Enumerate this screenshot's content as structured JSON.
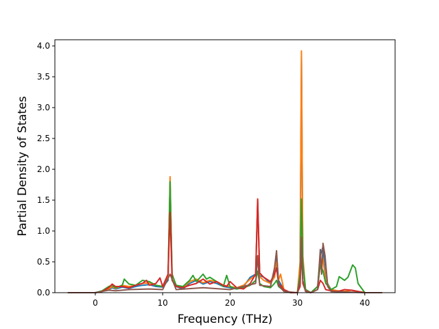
{
  "chart_data": {
    "type": "line",
    "title": "",
    "xlabel": "Frequency (THz)",
    "ylabel": "Partial Density of States",
    "xlim": [
      -6,
      44.5
    ],
    "ylim": [
      0,
      4.1
    ],
    "xticks": [
      0,
      10,
      20,
      30,
      40
    ],
    "yticks": [
      0.0,
      0.5,
      1.0,
      1.5,
      2.0,
      2.5,
      3.0,
      3.5,
      4.0
    ],
    "xtick_labels": [
      "0",
      "10",
      "20",
      "30",
      "40"
    ],
    "ytick_labels": [
      "0.0",
      "0.5",
      "1.0",
      "1.5",
      "2.0",
      "2.5",
      "3.0",
      "3.5",
      "4.0"
    ],
    "grid": false,
    "legend": "none",
    "series": [
      {
        "color": "#1f77b4",
        "x": [
          -4,
          0,
          1,
          2,
          2.5,
          3,
          4,
          5,
          6,
          7,
          8,
          9,
          10,
          10.8,
          11.1,
          11.4,
          12,
          13,
          14,
          15,
          16,
          17,
          18,
          19,
          20,
          21,
          22,
          23,
          23.8,
          24.1,
          24.4,
          25,
          26,
          26.6,
          26.9,
          27.2,
          28,
          29,
          30,
          30.4,
          30.6,
          30.8,
          31.2,
          32,
          33,
          33.4,
          33.8,
          34.2,
          35,
          36,
          37,
          38,
          39,
          40,
          42.5
        ],
        "y": [
          0,
          0,
          0.02,
          0.05,
          0.08,
          0.06,
          0.09,
          0.07,
          0.1,
          0.12,
          0.13,
          0.1,
          0.09,
          0.2,
          1.82,
          0.2,
          0.1,
          0.06,
          0.15,
          0.2,
          0.14,
          0.18,
          0.15,
          0.1,
          0.08,
          0.06,
          0.1,
          0.25,
          0.3,
          1.48,
          0.28,
          0.25,
          0.15,
          0.3,
          0.62,
          0.2,
          0.05,
          0,
          0,
          0.4,
          3.88,
          0.5,
          0.05,
          0,
          0.1,
          0.6,
          0.75,
          0.2,
          0.05,
          0.03,
          0.02,
          0.04,
          0.02,
          0,
          0
        ]
      },
      {
        "color": "#ff7f0e",
        "x": [
          -4,
          0,
          1,
          2,
          2.5,
          3,
          4,
          5,
          6,
          7,
          8,
          9,
          10,
          10.8,
          11.1,
          11.4,
          12,
          13,
          14,
          15,
          16,
          17,
          18,
          19,
          20,
          21,
          22,
          23,
          23.8,
          24.1,
          24.4,
          25,
          26,
          26.6,
          26.9,
          27.2,
          27.5,
          28,
          29,
          30,
          30.4,
          30.6,
          30.8,
          31.2,
          32,
          33,
          33.4,
          33.8,
          34.2,
          35,
          36,
          37,
          38,
          39,
          40,
          42.5
        ],
        "y": [
          0,
          0,
          0.02,
          0.06,
          0.1,
          0.07,
          0.12,
          0.1,
          0.12,
          0.15,
          0.16,
          0.12,
          0.1,
          0.25,
          1.88,
          0.22,
          0.12,
          0.08,
          0.18,
          0.22,
          0.16,
          0.2,
          0.18,
          0.12,
          0.1,
          0.08,
          0.12,
          0.22,
          0.28,
          1.5,
          0.26,
          0.2,
          0.15,
          0.25,
          0.5,
          0.2,
          0.3,
          0.05,
          0,
          0,
          0.5,
          3.92,
          0.6,
          0.05,
          0,
          0.1,
          0.45,
          0.55,
          0.18,
          0.05,
          0.03,
          0.02,
          0.04,
          0.02,
          0,
          0
        ]
      },
      {
        "color": "#2ca02c",
        "x": [
          -4,
          0,
          1,
          2,
          2.5,
          3,
          4,
          4.3,
          5,
          6,
          7,
          8,
          9,
          10,
          10.8,
          11.1,
          11.4,
          12,
          13,
          14,
          14.5,
          15,
          16,
          16.5,
          17,
          18,
          19,
          19.5,
          20,
          21,
          22,
          23,
          23.8,
          24.1,
          24.4,
          25,
          26,
          26.6,
          26.9,
          27.2,
          28,
          29,
          30,
          30.4,
          30.6,
          30.8,
          31.2,
          32,
          33,
          33.4,
          33.8,
          34.2,
          35,
          35.8,
          36.2,
          37,
          37.5,
          38.2,
          38.6,
          39,
          40,
          42.5
        ],
        "y": [
          0,
          0,
          0.03,
          0.1,
          0.12,
          0.08,
          0.12,
          0.22,
          0.14,
          0.12,
          0.2,
          0.18,
          0.12,
          0.1,
          0.3,
          1.8,
          0.3,
          0.12,
          0.1,
          0.2,
          0.28,
          0.18,
          0.3,
          0.22,
          0.25,
          0.18,
          0.1,
          0.28,
          0.1,
          0.06,
          0.08,
          0.12,
          0.2,
          0.35,
          0.15,
          0.1,
          0.08,
          0.15,
          0.2,
          0.1,
          0.03,
          0,
          0,
          0.3,
          1.52,
          0.5,
          0.05,
          0,
          0.1,
          0.45,
          0.35,
          0.15,
          0.05,
          0.1,
          0.26,
          0.2,
          0.25,
          0.45,
          0.4,
          0.15,
          0,
          0
        ]
      },
      {
        "color": "#d62728",
        "x": [
          -4,
          0,
          1,
          2,
          2.5,
          3,
          4,
          5,
          6,
          7,
          7.6,
          8,
          9,
          9.6,
          10,
          10.8,
          11.1,
          11.4,
          12,
          13,
          14,
          15,
          16,
          17,
          18,
          19,
          19.5,
          20,
          21,
          22,
          23,
          23.8,
          24.1,
          24.4,
          25,
          26,
          26.6,
          26.9,
          27.2,
          28,
          29,
          30,
          30.4,
          30.6,
          30.8,
          31.2,
          32,
          33,
          33.4,
          33.8,
          34.2,
          35,
          36,
          37,
          38,
          39,
          40,
          42.5
        ],
        "y": [
          0,
          0,
          0.02,
          0.08,
          0.14,
          0.1,
          0.1,
          0.08,
          0.12,
          0.15,
          0.2,
          0.12,
          0.15,
          0.24,
          0.1,
          0.3,
          1.3,
          0.2,
          0.1,
          0.08,
          0.12,
          0.15,
          0.22,
          0.14,
          0.18,
          0.12,
          0.1,
          0.18,
          0.08,
          0.06,
          0.15,
          0.3,
          1.52,
          0.32,
          0.25,
          0.18,
          0.3,
          0.4,
          0.15,
          0.05,
          0,
          0,
          0.1,
          0.7,
          0.15,
          0.03,
          0,
          0.05,
          0.2,
          0.15,
          0.05,
          0.03,
          0.02,
          0.05,
          0.04,
          0.02,
          0,
          0
        ]
      },
      {
        "color": "#8c564b",
        "x": [
          -4,
          0,
          2,
          3,
          5,
          8,
          10,
          11.1,
          12,
          16,
          20,
          23.8,
          24.1,
          24.4,
          26,
          26.6,
          26.9,
          27.2,
          28,
          30,
          30.4,
          30.6,
          30.8,
          31.2,
          32,
          33,
          33.4,
          33.6,
          33.8,
          34.1,
          34.5,
          35,
          40,
          42.5
        ],
        "y": [
          0,
          0,
          0.04,
          0.03,
          0.05,
          0.06,
          0.05,
          0.3,
          0.05,
          0.08,
          0.05,
          0.15,
          0.6,
          0.12,
          0.1,
          0.4,
          0.68,
          0.12,
          0.02,
          0,
          0.2,
          0.9,
          0.2,
          0.02,
          0,
          0.05,
          0.7,
          0.3,
          0.8,
          0.6,
          0.1,
          0.02,
          0,
          0
        ]
      }
    ]
  }
}
